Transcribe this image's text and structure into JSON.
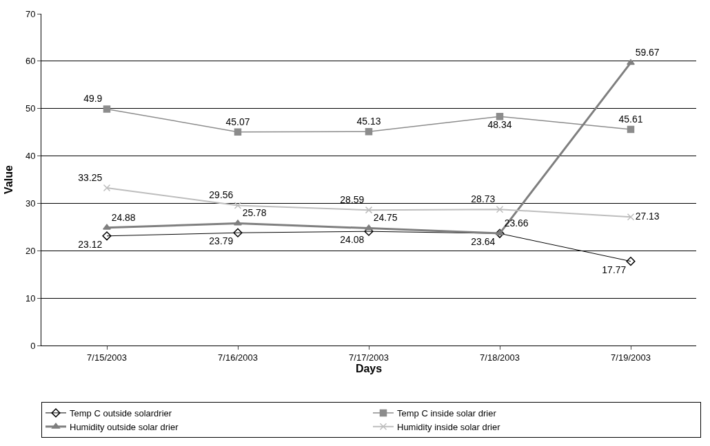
{
  "chart_data": {
    "type": "line",
    "xlabel": "Days",
    "ylabel": "Value",
    "categories": [
      "7/15/2003",
      "7/16/2003",
      "7/17/2003",
      "7/18/2003",
      "7/19/2003"
    ],
    "ylim": [
      0,
      70
    ],
    "yticks": [
      0,
      10,
      20,
      30,
      40,
      50,
      60,
      70
    ],
    "grid": "y",
    "legend": "bottom",
    "data_labels": true,
    "series": [
      {
        "name": "Temp C outside solardrier",
        "color": "#000000",
        "marker": "diamond",
        "values": [
          23.12,
          23.79,
          24.08,
          23.64,
          17.77
        ]
      },
      {
        "name": "Temp C inside solar drier",
        "color": "#8c8c8c",
        "marker": "square",
        "values": [
          49.9,
          45.07,
          45.13,
          48.34,
          45.61
        ]
      },
      {
        "name": "Humidity outside solar drier",
        "color": "#7f7f7f",
        "marker": "triangle",
        "values": [
          24.88,
          25.78,
          24.75,
          23.66,
          59.67
        ]
      },
      {
        "name": "Humidity inside solar drier",
        "color": "#bdbdbd",
        "marker": "cross",
        "values": [
          33.25,
          29.56,
          28.59,
          28.73,
          27.13
        ]
      }
    ]
  }
}
